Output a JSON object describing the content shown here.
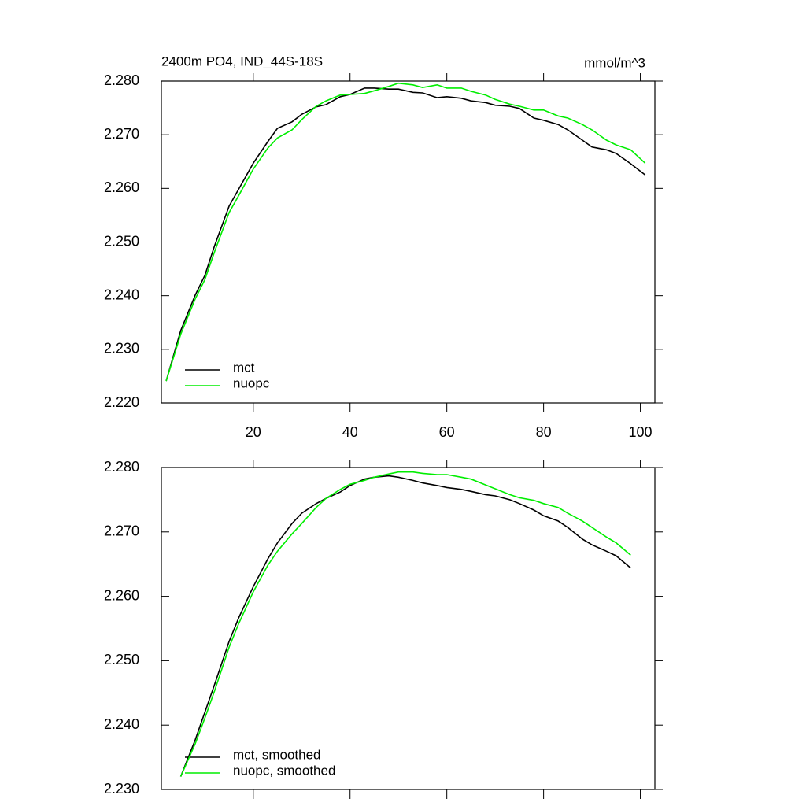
{
  "chart_data": [
    {
      "type": "line",
      "title": "2400m PO4, IND_44S-18S",
      "units": "mmol/m^3",
      "x": [
        2,
        5,
        8,
        10,
        12,
        15,
        17,
        20,
        23,
        25,
        28,
        30,
        33,
        35,
        38,
        40,
        43,
        45,
        48,
        50,
        53,
        55,
        58,
        60,
        63,
        65,
        68,
        70,
        73,
        75,
        78,
        80,
        83,
        85,
        88,
        90,
        93,
        95,
        98,
        101
      ],
      "series": [
        {
          "name": "mct",
          "color": "#000000",
          "values": [
            2.2241,
            2.2335,
            2.2401,
            2.2438,
            2.2493,
            2.2567,
            2.2599,
            2.2647,
            2.2687,
            2.2712,
            2.2724,
            2.2738,
            2.2752,
            2.2756,
            2.2771,
            2.2775,
            2.2787,
            2.2787,
            2.2785,
            2.2785,
            2.2779,
            2.2778,
            2.2769,
            2.2771,
            2.2768,
            2.2763,
            2.276,
            2.2755,
            2.2753,
            2.2749,
            2.2731,
            2.2727,
            2.2719,
            2.2709,
            2.269,
            2.2677,
            2.2672,
            2.2665,
            2.2646,
            2.2625
          ]
        },
        {
          "name": "nuopc",
          "color": "#00ee00",
          "values": [
            2.2241,
            2.2328,
            2.2394,
            2.243,
            2.2482,
            2.2555,
            2.2587,
            2.2636,
            2.2675,
            2.2694,
            2.2709,
            2.2728,
            2.2753,
            2.2763,
            2.2774,
            2.2775,
            2.2777,
            2.2782,
            2.279,
            2.2796,
            2.2793,
            2.2788,
            2.2793,
            2.2787,
            2.2787,
            2.2781,
            2.2774,
            2.2766,
            2.2757,
            2.2753,
            2.2746,
            2.2746,
            2.2735,
            2.2731,
            2.2719,
            2.2709,
            2.269,
            2.2681,
            2.2672,
            2.2647
          ]
        }
      ],
      "xlim": [
        1,
        103
      ],
      "xticks": [
        20,
        40,
        60,
        80,
        100
      ],
      "xtick_labels": true,
      "ylim": [
        2.22,
        2.28
      ],
      "yticks": [
        {
          "value": 2.22,
          "label": "2.220"
        },
        {
          "value": 2.23,
          "label": "2.230"
        },
        {
          "value": 2.24,
          "label": "2.240"
        },
        {
          "value": 2.25,
          "label": "2.250"
        },
        {
          "value": 2.26,
          "label": "2.260"
        },
        {
          "value": 2.27,
          "label": "2.270"
        },
        {
          "value": 2.28,
          "label": "2.280"
        }
      ]
    },
    {
      "type": "line",
      "x": [
        5,
        8,
        10,
        12,
        15,
        17,
        20,
        23,
        25,
        28,
        30,
        33,
        35,
        38,
        40,
        43,
        45,
        48,
        50,
        53,
        55,
        58,
        60,
        63,
        65,
        68,
        70,
        73,
        75,
        78,
        80,
        83,
        85,
        88,
        90,
        93,
        95,
        98
      ],
      "series": [
        {
          "name": "mct, smoothed",
          "color": "#000000",
          "values": [
            2.232,
            2.2377,
            2.242,
            2.2463,
            2.253,
            2.2567,
            2.2615,
            2.2658,
            2.2683,
            2.2713,
            2.2729,
            2.2744,
            2.2752,
            2.2762,
            2.2772,
            2.2782,
            2.2785,
            2.2787,
            2.2785,
            2.278,
            2.2776,
            2.2772,
            2.2769,
            2.2766,
            2.2763,
            2.2758,
            2.2756,
            2.275,
            2.2744,
            2.2734,
            2.2725,
            2.2717,
            2.2707,
            2.2689,
            2.268,
            2.267,
            2.2663,
            2.2644
          ]
        },
        {
          "name": "nuopc, smoothed",
          "color": "#00ee00",
          "values": [
            2.232,
            2.2371,
            2.2411,
            2.2453,
            2.2521,
            2.2558,
            2.2607,
            2.2648,
            2.267,
            2.2697,
            2.2713,
            2.2738,
            2.2752,
            2.2766,
            2.2774,
            2.278,
            2.2785,
            2.279,
            2.2793,
            2.2793,
            2.2791,
            2.2789,
            2.2789,
            2.2785,
            2.2782,
            2.2773,
            2.2767,
            2.2758,
            2.2753,
            2.2749,
            2.2744,
            2.2738,
            2.2729,
            2.2717,
            2.2707,
            2.2692,
            2.2683,
            2.2664
          ]
        }
      ],
      "xlim": [
        1,
        103
      ],
      "xticks": [
        20,
        40,
        60,
        80,
        100
      ],
      "xtick_labels": false,
      "ylim": [
        2.23,
        2.28
      ],
      "yticks": [
        {
          "value": 2.23,
          "label": "2.230"
        },
        {
          "value": 2.24,
          "label": "2.240"
        },
        {
          "value": 2.25,
          "label": "2.250"
        },
        {
          "value": 2.26,
          "label": "2.260"
        },
        {
          "value": 2.27,
          "label": "2.270"
        },
        {
          "value": 2.28,
          "label": "2.280"
        }
      ]
    }
  ]
}
